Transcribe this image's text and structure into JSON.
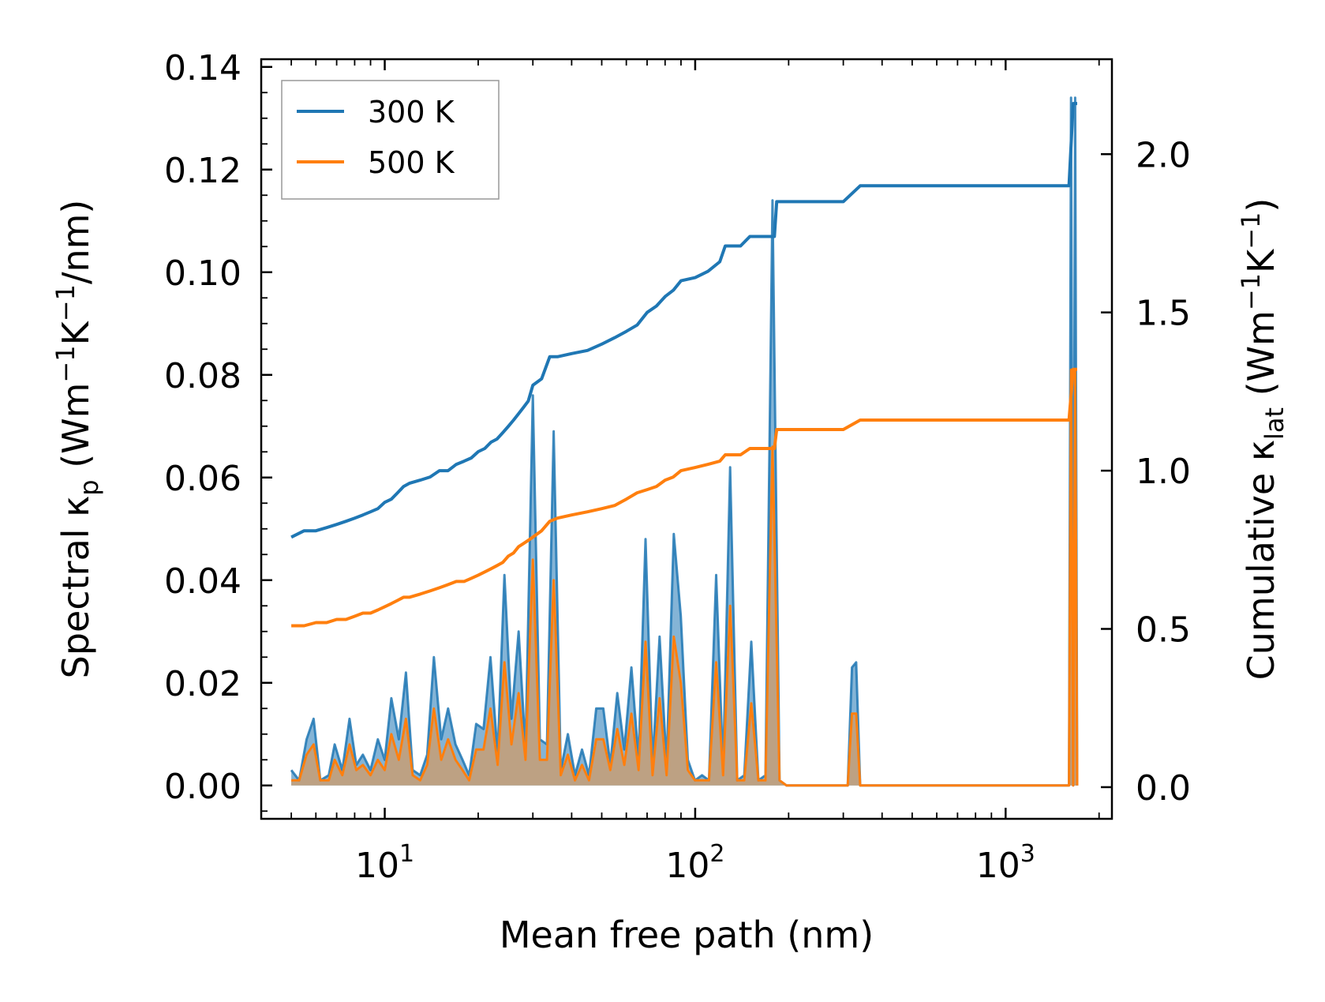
{
  "chart_data": {
    "type": "line",
    "xlabel": "Mean free path (nm)",
    "ylabel_left": {
      "main": "Spectral κ",
      "sub": "p",
      "units": "(Wm",
      "e1": "−1",
      "mid": "K",
      "e2": "−1",
      "end": "/nm)"
    },
    "ylabel_right": {
      "main": "Cumulative κ",
      "sub": "lat",
      "units": "(Wm",
      "e1": "−1",
      "mid": "K",
      "e2": "−1",
      "end": ")"
    },
    "x_scale": "log",
    "xlim": [
      4.0,
      2200
    ],
    "ylim_left": [
      -0.0065,
      0.1415
    ],
    "ylim_right": [
      -0.1,
      2.3
    ],
    "x_tick_labels": [
      {
        "base": "10",
        "exp": "1"
      },
      {
        "base": "10",
        "exp": "2"
      },
      {
        "base": "10",
        "exp": "3"
      }
    ],
    "x_tick_values": [
      10,
      100,
      1000
    ],
    "y_left_ticks": [
      0.0,
      0.02,
      0.04,
      0.06,
      0.08,
      0.1,
      0.12,
      0.14
    ],
    "y_left_tick_labels": [
      "0.00",
      "0.02",
      "0.04",
      "0.06",
      "0.08",
      "0.10",
      "0.12",
      "0.14"
    ],
    "y_right_ticks": [
      0.0,
      0.5,
      1.0,
      1.5,
      2.0
    ],
    "y_right_tick_labels": [
      "0.0",
      "0.5",
      "1.0",
      "1.5",
      "2.0"
    ],
    "legend": {
      "location": "top-left",
      "entries": [
        "300 K",
        "500 K"
      ]
    },
    "colors": {
      "300K": "#1f77b4",
      "500K": "#ff7f0e",
      "fill_overlap": "#c0a07e"
    },
    "spectral_x": [
      5.0,
      5.3,
      5.6,
      5.9,
      6.2,
      6.6,
      6.9,
      7.3,
      7.7,
      8.1,
      8.5,
      9.0,
      9.5,
      10.0,
      10.5,
      11.1,
      11.7,
      12.3,
      13.0,
      13.7,
      14.4,
      15.2,
      16.0,
      16.9,
      17.8,
      18.7,
      19.7,
      20.8,
      21.9,
      23.1,
      24.3,
      25.6,
      27.0,
      28.4,
      30.0,
      31.6,
      33.3,
      35.0,
      36.9,
      38.9,
      41.0,
      43.2,
      45.5,
      48.0,
      50.6,
      53.3,
      56.1,
      59.1,
      62.3,
      65.7,
      69.2,
      72.9,
      76.8,
      80.9,
      85.3,
      89.9,
      94.7,
      99.8,
      105.2,
      110.8,
      116.8,
      123.0,
      129.6,
      136.6,
      143.9,
      151.6,
      159.8,
      168.4,
      177.4,
      186.9,
      196.9,
      310.0,
      320.0,
      330.0,
      340.0,
      1600.0,
      1625.0,
      1650.0,
      1675.0,
      1700.0
    ],
    "spectral_300K": [
      0.003,
      0.001,
      0.009,
      0.013,
      0.001,
      0.002,
      0.008,
      0.003,
      0.013,
      0.004,
      0.006,
      0.003,
      0.009,
      0.005,
      0.017,
      0.009,
      0.022,
      0.003,
      0.002,
      0.006,
      0.025,
      0.009,
      0.015,
      0.008,
      0.005,
      0.002,
      0.012,
      0.011,
      0.025,
      0.006,
      0.041,
      0.013,
      0.03,
      0.007,
      0.076,
      0.009,
      0.008,
      0.069,
      0.003,
      0.01,
      0.002,
      0.007,
      0.002,
      0.015,
      0.015,
      0.004,
      0.018,
      0.007,
      0.023,
      0.005,
      0.048,
      0.004,
      0.029,
      0.004,
      0.049,
      0.033,
      0.005,
      0.001,
      0.002,
      0.001,
      0.041,
      0.003,
      0.062,
      0.001,
      0.002,
      0.028,
      0.001,
      0.002,
      0.114,
      0.001,
      0.0,
      0.0,
      0.023,
      0.024,
      0.0,
      0.0,
      0.134,
      0.0,
      0.134,
      0.0
    ],
    "spectral_500K": [
      0.001,
      0.001,
      0.006,
      0.008,
      0.001,
      0.001,
      0.005,
      0.002,
      0.008,
      0.003,
      0.004,
      0.002,
      0.005,
      0.003,
      0.01,
      0.005,
      0.013,
      0.002,
      0.001,
      0.004,
      0.015,
      0.005,
      0.009,
      0.005,
      0.003,
      0.001,
      0.007,
      0.007,
      0.015,
      0.004,
      0.024,
      0.008,
      0.018,
      0.005,
      0.044,
      0.005,
      0.005,
      0.04,
      0.002,
      0.006,
      0.001,
      0.004,
      0.001,
      0.009,
      0.009,
      0.003,
      0.011,
      0.004,
      0.014,
      0.003,
      0.028,
      0.002,
      0.017,
      0.002,
      0.029,
      0.02,
      0.003,
      0.001,
      0.001,
      0.001,
      0.024,
      0.002,
      0.035,
      0.001,
      0.001,
      0.016,
      0.001,
      0.001,
      0.066,
      0.001,
      0.0,
      0.0,
      0.014,
      0.014,
      0.0,
      0.0,
      0.081,
      0.0,
      0.081,
      0.0
    ],
    "series": [
      {
        "name": "300 K",
        "x": [
          5.0,
          5.5,
          6.0,
          6.5,
          7.0,
          7.5,
          8.0,
          8.5,
          9.0,
          9.5,
          10.0,
          10.5,
          11.0,
          11.5,
          12.0,
          13.0,
          14.0,
          15.0,
          16.0,
          17.0,
          18.0,
          19.0,
          20.0,
          21.0,
          22.0,
          23.0,
          24.0,
          25.0,
          26.0,
          27.0,
          28.0,
          29.0,
          30.0,
          32.0,
          34.0,
          36.0,
          40.0,
          45.0,
          50.0,
          55.0,
          60.0,
          65.0,
          70.0,
          75.0,
          80.0,
          85.0,
          90.0,
          100.0,
          110.0,
          120.0,
          125.0,
          130.0,
          140.0,
          150.0,
          160.0,
          170.0,
          180.0,
          183.0,
          200.0,
          300.0,
          340.0,
          1600.0,
          1650.0,
          1700.0
        ],
        "values": [
          0.79,
          0.81,
          0.81,
          0.82,
          0.83,
          0.84,
          0.85,
          0.86,
          0.87,
          0.88,
          0.9,
          0.91,
          0.93,
          0.95,
          0.96,
          0.97,
          0.98,
          1.0,
          1.0,
          1.02,
          1.03,
          1.04,
          1.06,
          1.07,
          1.09,
          1.1,
          1.12,
          1.14,
          1.16,
          1.18,
          1.2,
          1.22,
          1.27,
          1.29,
          1.36,
          1.36,
          1.37,
          1.38,
          1.4,
          1.42,
          1.44,
          1.46,
          1.5,
          1.52,
          1.55,
          1.57,
          1.6,
          1.61,
          1.63,
          1.66,
          1.71,
          1.71,
          1.71,
          1.74,
          1.74,
          1.74,
          1.74,
          1.85,
          1.85,
          1.85,
          1.9,
          1.9,
          2.16,
          2.16
        ]
      },
      {
        "name": "500 K",
        "x": [
          5.0,
          5.5,
          6.0,
          6.5,
          7.0,
          7.5,
          8.0,
          8.5,
          9.0,
          9.5,
          10.0,
          10.5,
          11.0,
          11.5,
          12.0,
          13.0,
          14.0,
          15.0,
          16.0,
          17.0,
          18.0,
          19.0,
          20.0,
          21.0,
          22.0,
          23.0,
          24.0,
          25.0,
          26.0,
          27.0,
          28.0,
          29.0,
          30.0,
          32.0,
          34.0,
          36.0,
          40.0,
          45.0,
          50.0,
          55.0,
          60.0,
          65.0,
          70.0,
          75.0,
          80.0,
          85.0,
          90.0,
          100.0,
          110.0,
          120.0,
          125.0,
          130.0,
          140.0,
          150.0,
          160.0,
          170.0,
          180.0,
          183.0,
          200.0,
          300.0,
          340.0,
          1600.0,
          1650.0,
          1700.0
        ],
        "values": [
          0.51,
          0.51,
          0.52,
          0.52,
          0.53,
          0.53,
          0.54,
          0.55,
          0.55,
          0.56,
          0.57,
          0.58,
          0.59,
          0.6,
          0.6,
          0.61,
          0.62,
          0.63,
          0.64,
          0.65,
          0.65,
          0.66,
          0.67,
          0.68,
          0.69,
          0.7,
          0.71,
          0.73,
          0.74,
          0.76,
          0.77,
          0.78,
          0.79,
          0.81,
          0.84,
          0.85,
          0.86,
          0.87,
          0.88,
          0.89,
          0.91,
          0.93,
          0.94,
          0.95,
          0.97,
          0.98,
          1.0,
          1.01,
          1.02,
          1.03,
          1.05,
          1.05,
          1.05,
          1.07,
          1.07,
          1.07,
          1.07,
          1.13,
          1.13,
          1.13,
          1.16,
          1.16,
          1.32,
          1.32
        ]
      }
    ]
  }
}
